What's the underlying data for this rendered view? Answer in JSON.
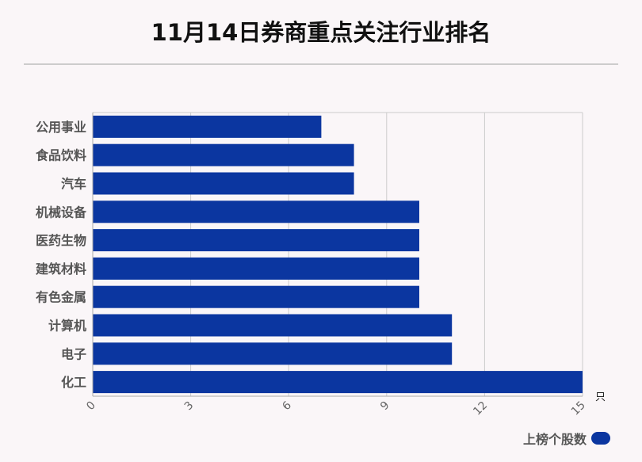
{
  "colors": {
    "bar": "#0b36a0",
    "grid": "#cccccc",
    "axis": "#aaaaaa"
  },
  "chart_data": {
    "type": "bar",
    "orientation": "horizontal",
    "title": "11月14日券商重点关注行业排名",
    "categories": [
      "公用事业",
      "食品饮料",
      "汽车",
      "机械设备",
      "医药生物",
      "建筑材料",
      "有色金属",
      "计算机",
      "电子",
      "化工"
    ],
    "series": [
      {
        "name": "上榜个股数",
        "values": [
          7,
          8,
          8,
          10,
          10,
          10,
          10,
          11,
          11,
          15
        ]
      }
    ],
    "xlim": [
      0,
      15
    ],
    "xticks": [
      0,
      3,
      6,
      9,
      12,
      15
    ],
    "xunit": "只",
    "grid": true,
    "legend_position": "bottom-right"
  }
}
